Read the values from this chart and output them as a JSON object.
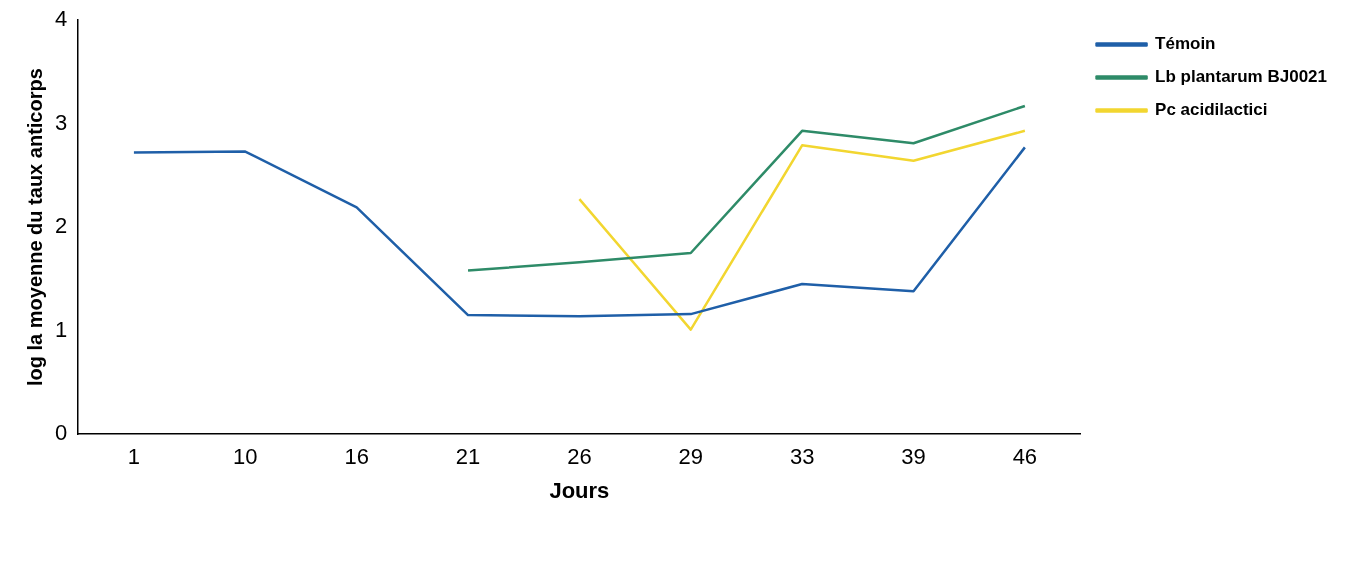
{
  "chart_data": {
    "type": "line",
    "xlabel": "Jours",
    "ylabel": "log la moyenne du taux anticorps",
    "categories": [
      "1",
      "10",
      "16",
      "21",
      "26",
      "29",
      "33",
      "39",
      "46"
    ],
    "series": [
      {
        "name": "Témoin",
        "color": "#1f5fa8",
        "values": [
          2.72,
          2.73,
          2.19,
          1.15,
          1.14,
          1.16,
          1.45,
          1.38,
          2.77
        ]
      },
      {
        "name": "Lb plantarum BJ0021",
        "color": "#2e8b68",
        "values": [
          null,
          null,
          null,
          1.58,
          1.66,
          1.75,
          2.93,
          2.81,
          3.17
        ]
      },
      {
        "name": "Pc acidilactici",
        "color": "#f2d630",
        "values": [
          null,
          null,
          null,
          null,
          2.27,
          1.01,
          2.79,
          2.64,
          2.93
        ]
      }
    ],
    "ylim": [
      0,
      4
    ],
    "yticks": [
      0,
      1,
      2,
      3,
      4
    ],
    "grid": false,
    "legend": "right",
    "marker": "none",
    "line_style": "solid"
  }
}
